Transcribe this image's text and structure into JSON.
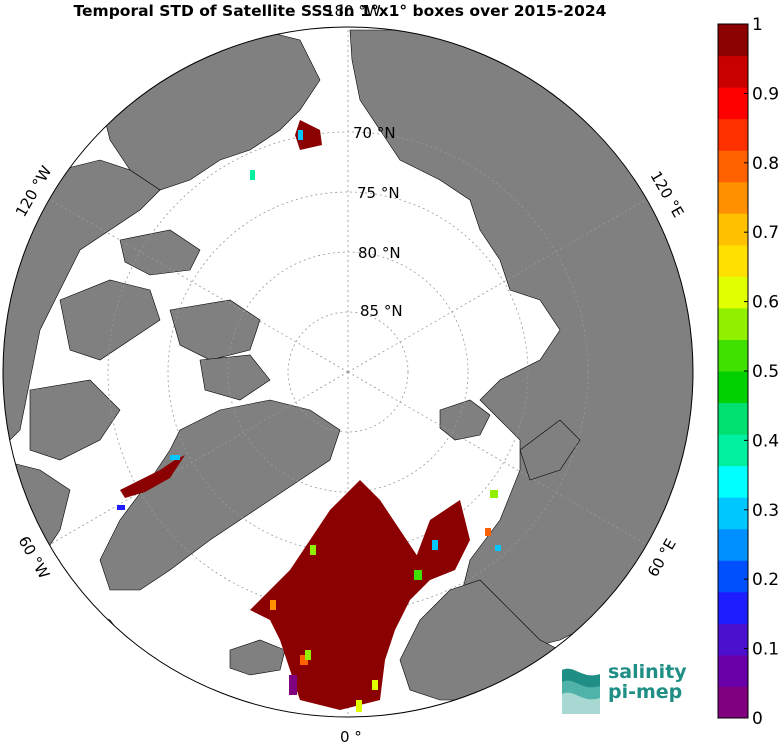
{
  "title": "Temporal STD of Satellite SSS in 1°x1° boxes over 2015-2024",
  "map": {
    "projection": "north-polar-stereographic",
    "center": "North Pole",
    "land_color": "#808080",
    "ocean_nodata_color": "#ffffff",
    "border_color": "#000000"
  },
  "latitude_labels": [
    "70 °N",
    "75 °N",
    "80 °N",
    "85 °N"
  ],
  "longitude_labels": [
    "180 °W",
    "120 °W",
    "60 °W",
    "0 °",
    "60 °E",
    "120 °E"
  ],
  "colorbar": {
    "min": 0,
    "max": 1,
    "tick_labels": [
      "0",
      "0.1",
      "0.2",
      "0.3",
      "0.4",
      "0.5",
      "0.6",
      "0.7",
      "0.8",
      "0.9",
      "1"
    ],
    "colors": [
      "#800080",
      "#6a00a8",
      "#4b0fd0",
      "#1d1dff",
      "#0050ff",
      "#0090ff",
      "#00c8ff",
      "#00ffff",
      "#00f0a0",
      "#00e070",
      "#00d000",
      "#40e000",
      "#90f000",
      "#e0ff00",
      "#ffe000",
      "#ffc000",
      "#ff9000",
      "#ff6000",
      "#ff3000",
      "#ff0000",
      "#c80000",
      "#8b0000"
    ]
  },
  "logo": {
    "line1": "salinity",
    "line2": "pi-mep"
  }
}
